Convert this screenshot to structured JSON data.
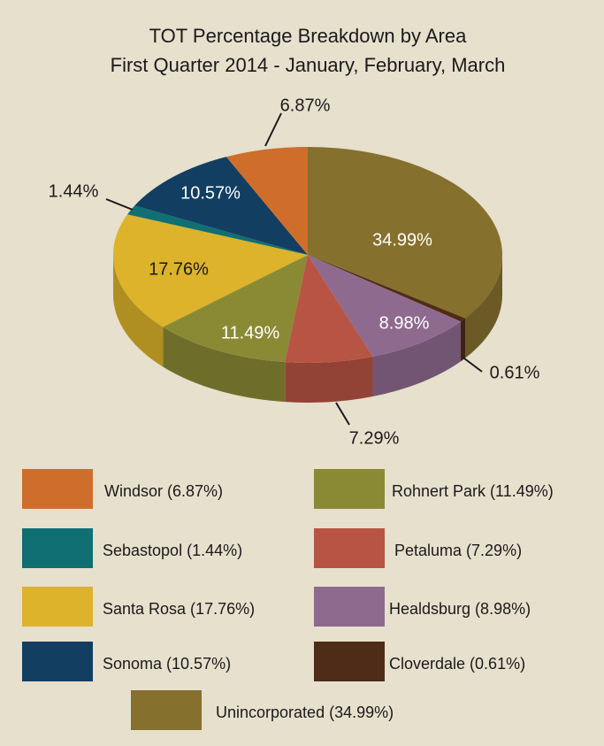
{
  "chart_data": {
    "type": "pie3d",
    "title": "TOT Percentage Breakdown by Area",
    "subtitle": "First Quarter 2014 - January, February, March",
    "categories": [
      "Unincorporated",
      "Cloverdale",
      "Healdsburg",
      "Petaluma",
      "Rohnert Park",
      "Santa Rosa",
      "Sebastopol",
      "Sonoma",
      "Windsor"
    ],
    "values": [
      34.99,
      0.61,
      8.98,
      7.29,
      11.49,
      17.76,
      1.44,
      10.57,
      6.87
    ],
    "value_labels": [
      "34.99%",
      "0.61%",
      "8.98%",
      "7.29%",
      "11.49%",
      "17.76%",
      "1.44%",
      "10.57%",
      "6.87%"
    ],
    "legend_labels": [
      "Unincorporated (34.99%)",
      "Cloverdale (0.61%)",
      "Healdsburg (8.98%)",
      "Petaluma (7.29%)",
      "Rohnert Park (11.49%)",
      "Santa Rosa (17.76%)",
      "Sebastopol (1.44%)",
      "Sonoma (10.57%)",
      "Windsor (6.87%)"
    ],
    "colors": [
      "#86702e",
      "#4f2c17",
      "#8f6a8f",
      "#b85444",
      "#8a8a35",
      "#dcb32a",
      "#0f6f72",
      "#123e62",
      "#cf6e2a"
    ]
  }
}
